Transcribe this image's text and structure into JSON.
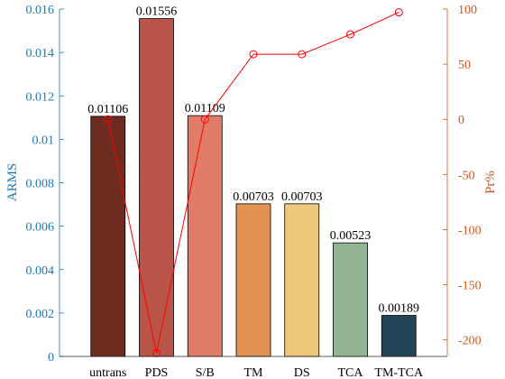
{
  "chart_data": {
    "type": "bar",
    "categories": [
      "untrans",
      "PDS",
      "S/B",
      "TM",
      "DS",
      "TCA",
      "TM-TCA"
    ],
    "series": [
      {
        "axis": "left",
        "type": "bar",
        "values": [
          0.01106,
          0.01556,
          0.01109,
          0.00703,
          0.00703,
          0.00523,
          0.00189
        ],
        "data_labels": [
          "0.01106",
          "0.01556",
          "0.01109",
          "0.00703",
          "0.00703",
          "0.00523",
          "0.00189"
        ],
        "colors": [
          "#6e2c20",
          "#b85448",
          "#e07c68",
          "#e29352",
          "#efc97b",
          "#93b593",
          "#214457"
        ]
      },
      {
        "axis": "right",
        "type": "line",
        "marker": "circle",
        "color": "#ff0000",
        "values": [
          0,
          -212,
          0,
          59,
          59,
          77,
          97
        ]
      }
    ],
    "ylabel": "ARMS",
    "ylim": [
      0,
      0.016
    ],
    "yticks": [
      0,
      0.002,
      0.004,
      0.006,
      0.008,
      0.01,
      0.012,
      0.014,
      0.016
    ],
    "ytick_labels": [
      "0",
      "0.002",
      "0.004",
      "0.006",
      "0.008",
      "0.01",
      "0.012",
      "0.014",
      "0.016"
    ],
    "y2label": "Pr%",
    "y2lim": [
      -215,
      100
    ],
    "y2ticks": [
      -200,
      -150,
      -100,
      -50,
      0,
      50,
      100
    ],
    "y2tick_labels": [
      "-200",
      "-150",
      "-100",
      "-50",
      "0",
      "50",
      "100"
    ],
    "left_axis_color": "#1f77b4",
    "right_axis_color": "#d95319",
    "grid": false
  }
}
